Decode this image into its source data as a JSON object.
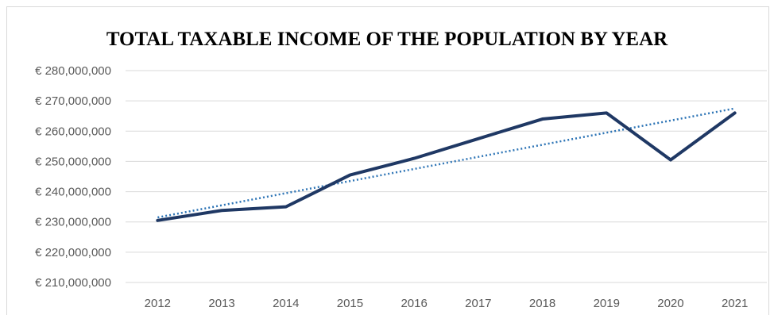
{
  "chart_data": {
    "type": "line",
    "title": "TOTAL TAXABLE INCOME OF THE POPULATION BY YEAR",
    "xlabel": "",
    "ylabel": "",
    "categories": [
      "2012",
      "2013",
      "2014",
      "2015",
      "2016",
      "2017",
      "2018",
      "2019",
      "2020",
      "2021"
    ],
    "series": [
      {
        "values": [
          230500000,
          233800000,
          235000000,
          245500000,
          251000000,
          257500000,
          264000000,
          266000000,
          250500000,
          266000000
        ],
        "color": "#1f3864",
        "style": "solid"
      },
      {
        "values": [
          231500000,
          235500000,
          239500000,
          243500000,
          247500000,
          251500000,
          255500000,
          259500000,
          263500000,
          267500000
        ],
        "color": "#2e75b6",
        "style": "dotted",
        "kind": "linear trendline"
      }
    ],
    "ylim": [
      210000000,
      280000000
    ],
    "yticks": [
      "€ 210,000,000",
      "€ 220,000,000",
      "€ 230,000,000",
      "€ 240,000,000",
      "€ 250,000,000",
      "€ 260,000,000",
      "€ 270,000,000",
      "€ 280,000,000"
    ],
    "grid": true,
    "legend": "none"
  }
}
